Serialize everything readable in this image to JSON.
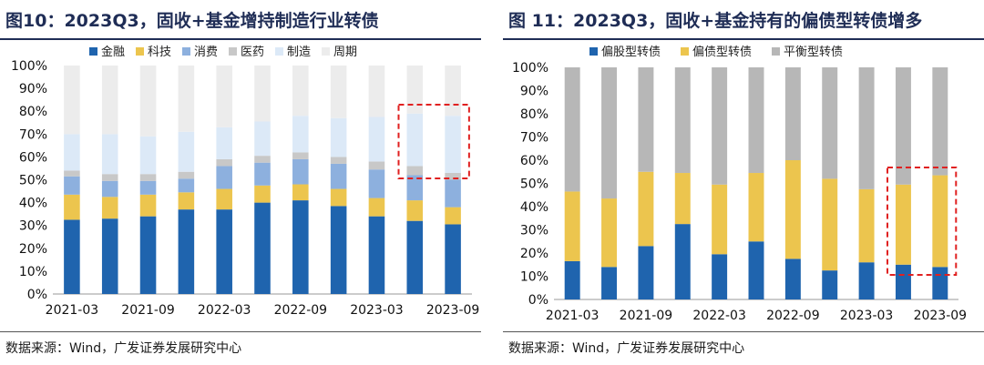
{
  "colors": {
    "金融": "#1f64ae",
    "科技": "#ecc54e",
    "消费": "#8db0de",
    "医药": "#c8c8c8",
    "制造": "#dce9f7",
    "周期": "#ececec",
    "偏股型转债": "#1f64ae",
    "偏债型转债": "#ecc54e",
    "平衡型转债": "#b7b7b7",
    "highlight": "#e02020",
    "title": "#1f2d56"
  },
  "left": {
    "title": "图10：2023Q3，固收+基金增持制造行业转债",
    "source": "数据来源：Wind，广发证券发展研究中心"
  },
  "right": {
    "title": "图 11：2023Q3，固收+基金持有的偏债型转债增多",
    "source": "数据来源：Wind，广发证券发展研究中心"
  },
  "chart_data": [
    {
      "type": "bar",
      "stacked": true,
      "title": "图10：2023Q3，固收+基金增持制造行业转债",
      "categories": [
        "2021-03",
        "2021-06",
        "2021-09",
        "2021-12",
        "2022-03",
        "2022-06",
        "2022-09",
        "2022-12",
        "2023-03",
        "2023-06",
        "2023-09"
      ],
      "x_tick_labels": [
        "2021-03",
        "",
        "2021-09",
        "",
        "2022-03",
        "",
        "2022-09",
        "",
        "2023-03",
        "",
        "2023-09"
      ],
      "y_tick_labels": [
        "0%",
        "10%",
        "20%",
        "30%",
        "40%",
        "50%",
        "60%",
        "70%",
        "80%",
        "90%",
        "100%"
      ],
      "ylim": [
        0,
        100
      ],
      "legend_position": "top",
      "grid": false,
      "series": [
        {
          "name": "金融",
          "values": [
            32.5,
            33,
            34,
            37,
            37,
            40,
            41,
            38.5,
            34,
            32,
            30.5
          ]
        },
        {
          "name": "科技",
          "values": [
            11,
            9.5,
            9.5,
            7.5,
            9,
            7.5,
            7,
            7.5,
            8,
            9,
            7.5
          ]
        },
        {
          "name": "消费",
          "values": [
            8,
            7,
            6,
            6,
            10,
            10,
            11,
            11,
            12.5,
            11,
            12
          ]
        },
        {
          "name": "医药",
          "values": [
            2.5,
            3,
            3,
            3,
            3,
            3,
            3,
            3,
            3.5,
            4,
            3
          ]
        },
        {
          "name": "制造",
          "values": [
            16,
            17.5,
            16.5,
            17.5,
            14,
            15,
            16,
            17,
            19.5,
            23,
            25
          ]
        },
        {
          "name": "周期",
          "values": [
            30,
            30,
            31,
            29,
            27,
            24.5,
            22,
            23,
            22.5,
            21,
            22
          ]
        }
      ],
      "highlight_categories": [
        "2023-06",
        "2023-09"
      ]
    },
    {
      "type": "bar",
      "stacked": true,
      "title": "图 11：2023Q3，固收+基金持有的偏债型转债增多",
      "categories": [
        "2021-03",
        "2021-06",
        "2021-09",
        "2021-12",
        "2022-03",
        "2022-06",
        "2022-09",
        "2022-12",
        "2023-03",
        "2023-06",
        "2023-09"
      ],
      "x_tick_labels": [
        "2021-03",
        "",
        "2021-09",
        "",
        "2022-03",
        "",
        "2022-09",
        "",
        "2023-03",
        "",
        "2023-09"
      ],
      "y_tick_labels": [
        "0%",
        "10%",
        "20%",
        "30%",
        "40%",
        "50%",
        "60%",
        "70%",
        "80%",
        "90%",
        "100%"
      ],
      "ylim": [
        0,
        100
      ],
      "legend_position": "top",
      "grid": false,
      "series": [
        {
          "name": "偏股型转债",
          "values": [
            16.5,
            14,
            23,
            32.5,
            19.5,
            25,
            17.5,
            12.5,
            16,
            15,
            14
          ]
        },
        {
          "name": "偏债型转债",
          "values": [
            30,
            29.5,
            32,
            22,
            30,
            29.5,
            42.5,
            39.5,
            31.5,
            34.5,
            39.5
          ]
        },
        {
          "name": "平衡型转债",
          "values": [
            53.5,
            56.5,
            45,
            45.5,
            50.5,
            45.5,
            40,
            48,
            52.5,
            50.5,
            46.5
          ]
        }
      ],
      "highlight_categories": [
        "2023-06",
        "2023-09"
      ]
    }
  ]
}
